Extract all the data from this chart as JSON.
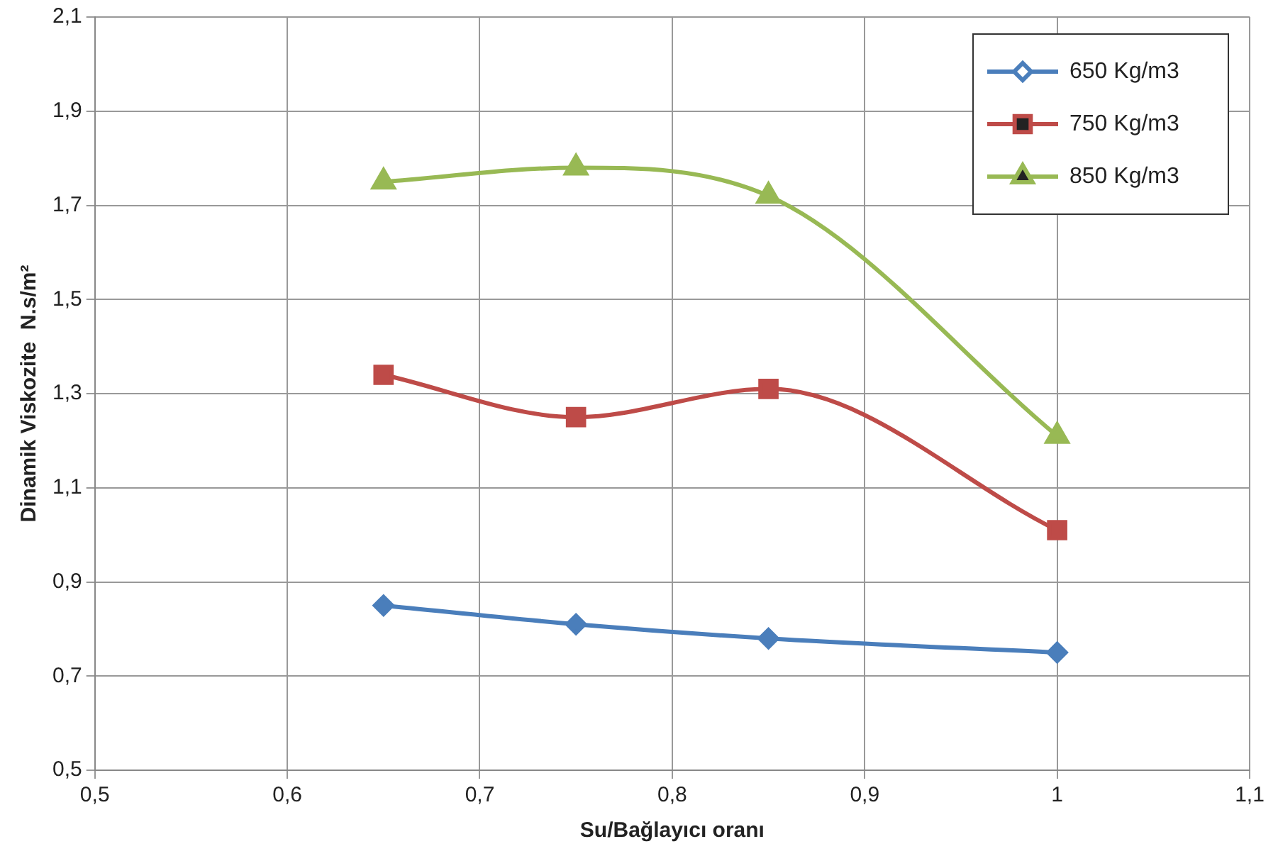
{
  "chart_data": {
    "type": "line",
    "xlabel": "Su/Bağlayıcı oranı",
    "ylabel": "Dinamik Viskozite  N.s/m²",
    "x": [
      0.65,
      0.75,
      0.85,
      1
    ],
    "series": [
      {
        "name": "650 Kg/m3",
        "color": "#4a7ebb",
        "marker": "diamond",
        "values": [
          0.85,
          0.81,
          0.78,
          0.75
        ]
      },
      {
        "name": "750 Kg/m3",
        "color": "#be4b48",
        "marker": "square",
        "values": [
          1.34,
          1.25,
          1.31,
          1.01
        ]
      },
      {
        "name": "850 Kg/m3",
        "color": "#98b954",
        "marker": "triangle",
        "values": [
          1.75,
          1.78,
          1.72,
          1.21
        ]
      }
    ],
    "xlim": [
      0.5,
      1.1
    ],
    "xticks": [
      {
        "value": 0.5,
        "label": "0,5"
      },
      {
        "value": 0.6,
        "label": "0,6"
      },
      {
        "value": 0.7,
        "label": "0,7"
      },
      {
        "value": 0.8,
        "label": "0,8"
      },
      {
        "value": 0.9,
        "label": "0,9"
      },
      1,
      {
        "value": 1.1,
        "label": "1,1"
      }
    ],
    "ylim": [
      0.5,
      2.1
    ],
    "yticks": [
      {
        "value": 0.5,
        "label": "0,5"
      },
      {
        "value": 0.7,
        "label": "0,7"
      },
      {
        "value": 0.9,
        "label": "0,9"
      },
      {
        "value": 1.1,
        "label": "1,1"
      },
      {
        "value": 1.3,
        "label": "1,3"
      },
      {
        "value": 1.5,
        "label": "1,5"
      },
      {
        "value": 1.7,
        "label": "1,7"
      },
      {
        "value": 1.9,
        "label": "1,9"
      },
      {
        "value": 2.1,
        "label": "2,1"
      }
    ],
    "grid": true,
    "legend": "top right",
    "line_style": "solid"
  }
}
